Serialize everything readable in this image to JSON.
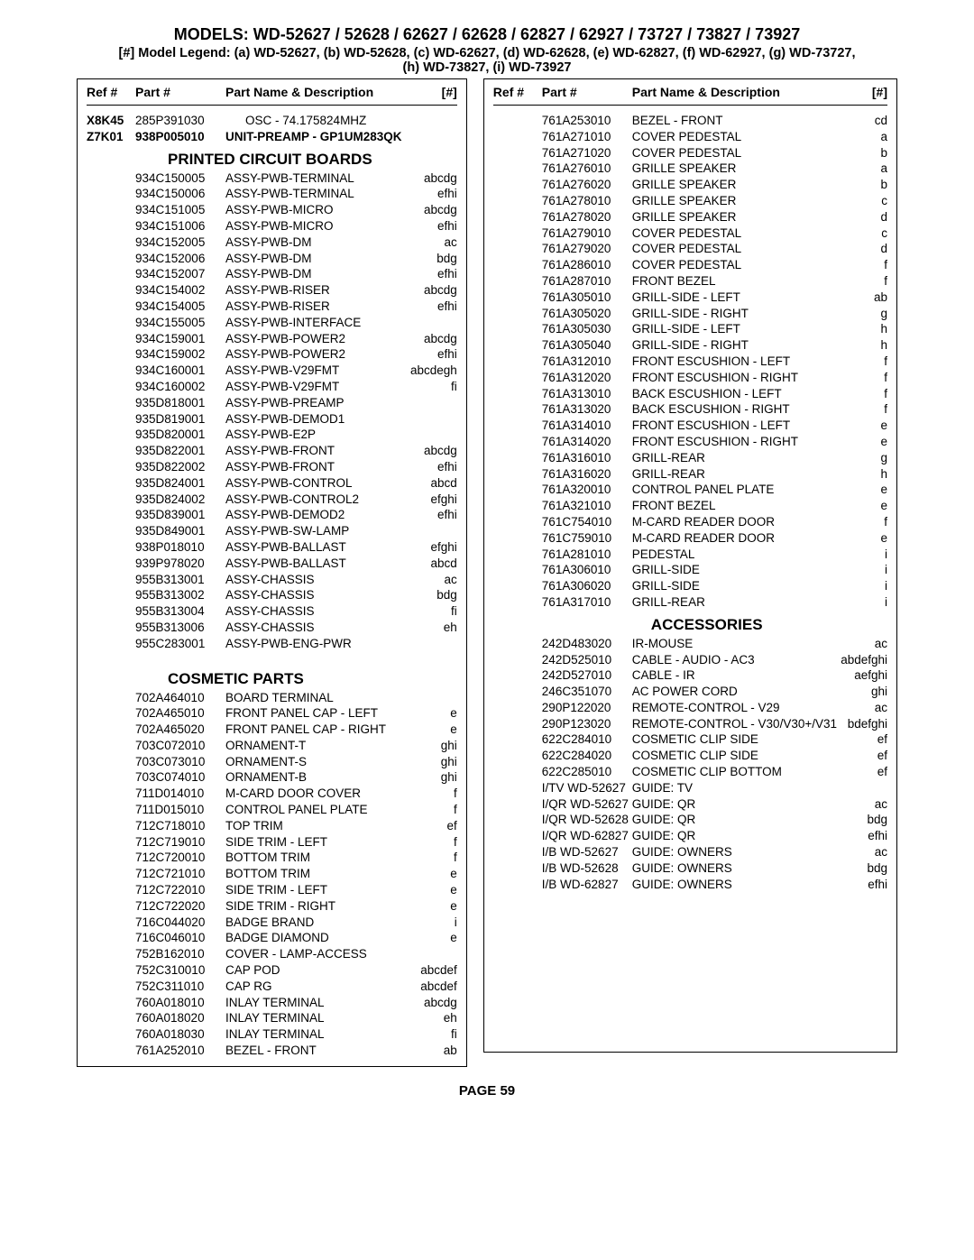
{
  "title": "MODELS:  WD-52627 / 52628 / 62627 / 62628 / 62827 / 62927 / 73727 / 73827 / 73927",
  "legend1": "[#] Model Legend:   (a) WD-52627, (b) WD-52628, (c) WD-62627, (d) WD-62628, (e) WD-62827, (f) WD-62927, (g) WD-73727,",
  "legend2": "(h) WD-73827, (i) WD-73927",
  "page_label": "PAGE 59",
  "headers": {
    "ref": "Ref #",
    "part": "Part #",
    "desc": "Part Name  &  Description",
    "tag": "[#]"
  },
  "sections": {
    "pcb": "PRINTED CIRCUIT BOARDS",
    "cosmetic": "COSMETIC PARTS",
    "accessories": "ACCESSORIES"
  },
  "left_intro": [
    {
      "ref": "X8K45",
      "part": "285P391030",
      "desc": "OSC - 74.175824MHZ",
      "tag": "",
      "bold": false,
      "emph": true
    },
    {
      "ref": "Z7K01",
      "part": "938P005010",
      "desc": "UNIT-PREAMP -   GP1UM283QK",
      "tag": "",
      "bold": true
    }
  ],
  "left_pcb": [
    {
      "part": "934C150005",
      "desc": "ASSY-PWB-TERMINAL",
      "tag": "abcdg"
    },
    {
      "part": "934C150006",
      "desc": "ASSY-PWB-TERMINAL",
      "tag": "efhi"
    },
    {
      "part": "934C151005",
      "desc": "ASSY-PWB-MICRO",
      "tag": "abcdg"
    },
    {
      "part": "934C151006",
      "desc": "ASSY-PWB-MICRO",
      "tag": "efhi"
    },
    {
      "part": "934C152005",
      "desc": "ASSY-PWB-DM",
      "tag": "ac"
    },
    {
      "part": "934C152006",
      "desc": "ASSY-PWB-DM",
      "tag": "bdg"
    },
    {
      "part": "934C152007",
      "desc": "ASSY-PWB-DM",
      "tag": "efhi"
    },
    {
      "part": "934C154002",
      "desc": "ASSY-PWB-RISER",
      "tag": "abcdg"
    },
    {
      "part": "934C154005",
      "desc": "ASSY-PWB-RISER",
      "tag": "efhi"
    },
    {
      "part": "934C155005",
      "desc": "ASSY-PWB-INTERFACE",
      "tag": ""
    },
    {
      "part": "934C159001",
      "desc": "ASSY-PWB-POWER2",
      "tag": "abcdg"
    },
    {
      "part": "934C159002",
      "desc": "ASSY-PWB-POWER2",
      "tag": "efhi"
    },
    {
      "part": "934C160001",
      "desc": "ASSY-PWB-V29FMT",
      "tag": "abcdegh"
    },
    {
      "part": "934C160002",
      "desc": "ASSY-PWB-V29FMT",
      "tag": "fi"
    },
    {
      "part": "935D818001",
      "desc": "ASSY-PWB-PREAMP",
      "tag": ""
    },
    {
      "part": "935D819001",
      "desc": "ASSY-PWB-DEMOD1",
      "tag": ""
    },
    {
      "part": "935D820001",
      "desc": "ASSY-PWB-E2P",
      "tag": ""
    },
    {
      "part": "935D822001",
      "desc": "ASSY-PWB-FRONT",
      "tag": "abcdg"
    },
    {
      "part": "935D822002",
      "desc": "ASSY-PWB-FRONT",
      "tag": "efhi"
    },
    {
      "part": "935D824001",
      "desc": "ASSY-PWB-CONTROL",
      "tag": "abcd"
    },
    {
      "part": "935D824002",
      "desc": "ASSY-PWB-CONTROL2",
      "tag": "efghi"
    },
    {
      "part": "935D839001",
      "desc": "ASSY-PWB-DEMOD2",
      "tag": "efhi"
    },
    {
      "part": "935D849001",
      "desc": "ASSY-PWB-SW-LAMP",
      "tag": ""
    },
    {
      "part": "938P018010",
      "desc": "ASSY-PWB-BALLAST",
      "tag": "efghi"
    },
    {
      "part": "939P978020",
      "desc": "ASSY-PWB-BALLAST",
      "tag": "abcd"
    },
    {
      "part": "955B313001",
      "desc": "ASSY-CHASSIS",
      "tag": "ac"
    },
    {
      "part": "955B313002",
      "desc": "ASSY-CHASSIS",
      "tag": "bdg"
    },
    {
      "part": "955B313004",
      "desc": "ASSY-CHASSIS",
      "tag": "fi"
    },
    {
      "part": "955B313006",
      "desc": "ASSY-CHASSIS",
      "tag": "eh"
    },
    {
      "part": "955C283001",
      "desc": "ASSY-PWB-ENG-PWR",
      "tag": ""
    }
  ],
  "left_cosmetic": [
    {
      "part": "702A464010",
      "desc": "BOARD TERMINAL",
      "tag": ""
    },
    {
      "part": "702A465010",
      "desc": "FRONT PANEL CAP - LEFT",
      "tag": "e"
    },
    {
      "part": "702A465020",
      "desc": "FRONT PANEL CAP - RIGHT",
      "tag": "e"
    },
    {
      "part": "703C072010",
      "desc": "ORNAMENT-T",
      "tag": "ghi"
    },
    {
      "part": "703C073010",
      "desc": "ORNAMENT-S",
      "tag": "ghi"
    },
    {
      "part": "703C074010",
      "desc": "ORNAMENT-B",
      "tag": "ghi"
    },
    {
      "part": "711D014010",
      "desc": "M-CARD DOOR COVER",
      "tag": "f"
    },
    {
      "part": "711D015010",
      "desc": "CONTROL PANEL PLATE",
      "tag": "f"
    },
    {
      "part": "712C718010",
      "desc": "TOP TRIM",
      "tag": "ef"
    },
    {
      "part": "712C719010",
      "desc": "SIDE TRIM - LEFT",
      "tag": "f"
    },
    {
      "part": "712C720010",
      "desc": "BOTTOM TRIM",
      "tag": "f"
    },
    {
      "part": "712C721010",
      "desc": "BOTTOM TRIM",
      "tag": "e"
    },
    {
      "part": "712C722010",
      "desc": "SIDE TRIM - LEFT",
      "tag": "e"
    },
    {
      "part": "712C722020",
      "desc": "SIDE TRIM - RIGHT",
      "tag": "e"
    },
    {
      "part": "716C044020",
      "desc": "BADGE BRAND",
      "tag": "i"
    },
    {
      "part": "716C046010",
      "desc": "BADGE DIAMOND",
      "tag": "e"
    },
    {
      "part": "752B162010",
      "desc": "COVER - LAMP-ACCESS",
      "tag": ""
    },
    {
      "part": "752C310010",
      "desc": "CAP POD",
      "tag": "abcdef"
    },
    {
      "part": "752C311010",
      "desc": "CAP RG",
      "tag": "abcdef"
    },
    {
      "part": "760A018010",
      "desc": "INLAY TERMINAL",
      "tag": "abcdg"
    },
    {
      "part": "760A018020",
      "desc": "INLAY TERMINAL",
      "tag": "eh"
    },
    {
      "part": "760A018030",
      "desc": "INLAY TERMINAL",
      "tag": "fi"
    },
    {
      "part": "761A252010",
      "desc": "BEZEL - FRONT",
      "tag": "ab"
    }
  ],
  "right_main": [
    {
      "part": "761A253010",
      "desc": "BEZEL -  FRONT",
      "tag": "cd"
    },
    {
      "part": "761A271010",
      "desc": "COVER PEDESTAL",
      "tag": "a"
    },
    {
      "part": "761A271020",
      "desc": "COVER PEDESTAL",
      "tag": "b"
    },
    {
      "part": "761A276010",
      "desc": "GRILLE SPEAKER",
      "tag": "a"
    },
    {
      "part": "761A276020",
      "desc": "GRILLE SPEAKER",
      "tag": "b"
    },
    {
      "part": "761A278010",
      "desc": "GRILLE SPEAKER",
      "tag": "c"
    },
    {
      "part": "761A278020",
      "desc": "GRILLE SPEAKER",
      "tag": "d"
    },
    {
      "part": "761A279010",
      "desc": "COVER PEDESTAL",
      "tag": "c"
    },
    {
      "part": "761A279020",
      "desc": "COVER PEDESTAL",
      "tag": "d"
    },
    {
      "part": "761A286010",
      "desc": "COVER PEDESTAL",
      "tag": "f"
    },
    {
      "part": "761A287010",
      "desc": "FRONT BEZEL",
      "tag": "f"
    },
    {
      "part": "761A305010",
      "desc": "GRILL-SIDE - LEFT",
      "tag": "ab"
    },
    {
      "part": "761A305020",
      "desc": "GRILL-SIDE - RIGHT",
      "tag": "g"
    },
    {
      "part": "761A305030",
      "desc": "GRILL-SIDE - LEFT",
      "tag": "h"
    },
    {
      "part": "761A305040",
      "desc": "GRILL-SIDE - RIGHT",
      "tag": "h"
    },
    {
      "part": "761A312010",
      "desc": "FRONT ESCUSHION -  LEFT",
      "tag": "f"
    },
    {
      "part": "761A312020",
      "desc": "FRONT ESCUSHION -  RIGHT",
      "tag": "f"
    },
    {
      "part": "761A313010",
      "desc": "BACK ESCUSHION -  LEFT",
      "tag": "f"
    },
    {
      "part": "761A313020",
      "desc": "BACK ESCUSHION -  RIGHT",
      "tag": "f"
    },
    {
      "part": "761A314010",
      "desc": "FRONT ESCUSHION -  LEFT",
      "tag": "e"
    },
    {
      "part": "761A314020",
      "desc": "FRONT ESCUSHION -  RIGHT",
      "tag": "e"
    },
    {
      "part": "761A316010",
      "desc": "GRILL-REAR",
      "tag": "g"
    },
    {
      "part": "761A316020",
      "desc": "GRILL-REAR",
      "tag": "h"
    },
    {
      "part": "761A320010",
      "desc": "CONTROL PANEL PLATE",
      "tag": "e"
    },
    {
      "part": "761A321010",
      "desc": "FRONT BEZEL",
      "tag": "e"
    },
    {
      "part": "761C754010",
      "desc": "M-CARD READER DOOR",
      "tag": "f"
    },
    {
      "part": "761C759010",
      "desc": "M-CARD READER DOOR",
      "tag": "e"
    },
    {
      "part": "761A281010",
      "desc": "PEDESTAL",
      "tag": "i"
    },
    {
      "part": "761A306010",
      "desc": "GRILL-SIDE",
      "tag": "i"
    },
    {
      "part": "761A306020",
      "desc": "GRILL-SIDE",
      "tag": "i"
    },
    {
      "part": "761A317010",
      "desc": "GRILL-REAR",
      "tag": "i"
    }
  ],
  "right_acc": [
    {
      "part": "242D483020",
      "desc": "IR-MOUSE",
      "tag": "ac"
    },
    {
      "part": "242D525010",
      "desc": "CABLE - AUDIO -  AC3",
      "tag": "abdefghi"
    },
    {
      "part": "242D527010",
      "desc": "CABLE - IR",
      "tag": "aefghi"
    },
    {
      "part": "246C351070",
      "desc": "AC POWER CORD",
      "tag": "ghi"
    },
    {
      "part": "290P122020",
      "desc": "REMOTE-CONTROL - V29",
      "tag": "ac"
    },
    {
      "part": "290P123020",
      "desc": "REMOTE-CONTROL - V30/V30+/V31",
      "tag": "bdefghi"
    },
    {
      "part": "622C284010",
      "desc": "COSMETIC CLIP SIDE",
      "tag": "ef"
    },
    {
      "part": "622C284020",
      "desc": "COSMETIC CLIP SIDE",
      "tag": "ef"
    },
    {
      "part": "622C285010",
      "desc": "COSMETIC CLIP BOTTOM",
      "tag": "ef"
    },
    {
      "part": "I/TV WD-52627",
      "desc": "GUIDE: TV",
      "tag": ""
    },
    {
      "part": "I/QR WD-52627",
      "desc": "GUIDE: QR",
      "tag": "ac"
    },
    {
      "part": "I/QR WD-52628",
      "desc": "GUIDE: QR",
      "tag": "bdg"
    },
    {
      "part": "I/QR WD-62827",
      "desc": "GUIDE: QR",
      "tag": "efhi"
    },
    {
      "part": "I/B WD-52627",
      "desc": "GUIDE: OWNERS",
      "tag": "ac"
    },
    {
      "part": "I/B WD-52628",
      "desc": "GUIDE: OWNERS",
      "tag": "bdg"
    },
    {
      "part": "I/B WD-62827",
      "desc": "GUIDE: OWNERS",
      "tag": "efhi"
    }
  ]
}
